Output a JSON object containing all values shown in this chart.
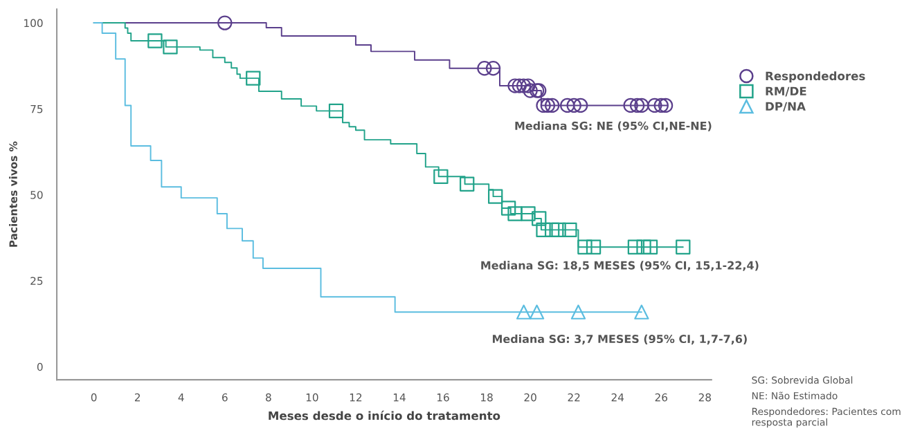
{
  "chart_data": {
    "type": "step",
    "xlabel": "Meses desde o início do tratamento",
    "ylabel": "Pacientes vivos %",
    "xlim": [
      -1.7,
      28.3
    ],
    "ylim": [
      -3.8,
      104
    ],
    "xticks": [
      0,
      2,
      4,
      6,
      8,
      10,
      12,
      14,
      16,
      18,
      20,
      22,
      24,
      26,
      28
    ],
    "yticks": [
      0,
      25,
      50,
      75,
      100
    ],
    "grid": false,
    "legend": "right",
    "series": [
      {
        "color": "#5b3f8c",
        "x": [
          0,
          7.9,
          8.6,
          12.0,
          12.7,
          14.7,
          16.3,
          18.6,
          20.0,
          20.5,
          26.3
        ],
        "values": [
          100,
          98.6,
          96.2,
          93.6,
          91.7,
          89.2,
          86.8,
          81.7,
          80.3,
          76.0,
          76.0
        ]
      },
      {
        "color": "#22a38a",
        "x": [
          0,
          1.43,
          1.55,
          1.7,
          3.3,
          4.86,
          5.45,
          6.0,
          6.3,
          6.56,
          6.7,
          7.56,
          8.6,
          9.5,
          10.2,
          11.4,
          11.7,
          12.0,
          12.4,
          13.6,
          14.8,
          15.2,
          15.8,
          17.0,
          18.1,
          18.3,
          18.7,
          19.1,
          20.2,
          20.5,
          22.2,
          27.0
        ],
        "values": [
          100,
          98.5,
          97,
          94.8,
          93.0,
          92.1,
          89.9,
          88.5,
          86.9,
          85.1,
          83.9,
          80.1,
          77.9,
          75.8,
          74.4,
          71.0,
          69.8,
          68.8,
          66.0,
          64.8,
          62.0,
          58.1,
          55.3,
          53.1,
          51.5,
          49.5,
          46.1,
          44.5,
          43.1,
          39.8,
          34.8,
          34.8
        ]
      },
      {
        "color": "#5bbde0",
        "x": [
          0,
          0.38,
          1.0,
          1.43,
          1.7,
          2.6,
          3.1,
          4.0,
          5.65,
          6.1,
          6.8,
          7.3,
          7.75,
          10.4,
          13.8,
          25.1
        ],
        "values": [
          100,
          97,
          89.5,
          76,
          64.2,
          60,
          52.3,
          49.1,
          44.5,
          40.2,
          36.6,
          31.6,
          28.6,
          20.3,
          15.9,
          15.9
        ]
      },
      {
        "type": "scatter",
        "name": "Respondedores",
        "color": "#5b3f8c",
        "marker": "circle",
        "x": [
          6.0,
          17.9,
          18.3,
          19.3,
          19.5,
          19.7,
          19.9,
          20.0,
          20.3,
          20.4,
          20.6,
          20.8,
          21.0,
          21.7,
          22.0,
          22.3,
          24.6,
          24.9,
          25.1,
          25.7,
          26.0,
          26.2
        ],
        "values": [
          100,
          86.8,
          86.8,
          81.7,
          81.7,
          81.7,
          81.7,
          80.3,
          80.3,
          80.3,
          76,
          76,
          76,
          76,
          76,
          76,
          76,
          76,
          76,
          76,
          76,
          76
        ]
      },
      {
        "type": "scatter",
        "name": "RM/DE",
        "color": "#22a38a",
        "marker": "square",
        "x": [
          2.8,
          3.5,
          7.3,
          11.1,
          15.9,
          17.1,
          18.4,
          19.0,
          19.3,
          19.9,
          20.4,
          20.6,
          21.0,
          21.3,
          21.8,
          22.5,
          22.9,
          24.8,
          25.2,
          25.5,
          27.0
        ],
        "values": [
          94.8,
          93.0,
          83.9,
          74.4,
          55.3,
          53.1,
          49.5,
          46.1,
          44.5,
          44.5,
          43.1,
          39.8,
          39.8,
          39.8,
          39.8,
          34.8,
          34.8,
          34.8,
          34.8,
          34.8,
          34.8
        ]
      },
      {
        "type": "scatter",
        "name": "DP/NA",
        "color": "#5bbde0",
        "marker": "triangle",
        "x": [
          19.7,
          20.3,
          22.2,
          25.1
        ],
        "values": [
          15.9,
          15.9,
          15.9,
          15.9
        ]
      }
    ],
    "annotations": [
      "Mediana SG: NE (95% CI,NE-NE)",
      "Mediana SG: 18,5 MESES (95% CI, 15,1-22,4)",
      "Mediana SG: 3,7 MESES (95% CI, 1,7-7,6)",
      "SG: Sobrevida Global",
      "NE: Não Estimado",
      "Respondedores: Pacientes com resposta parcial"
    ]
  }
}
